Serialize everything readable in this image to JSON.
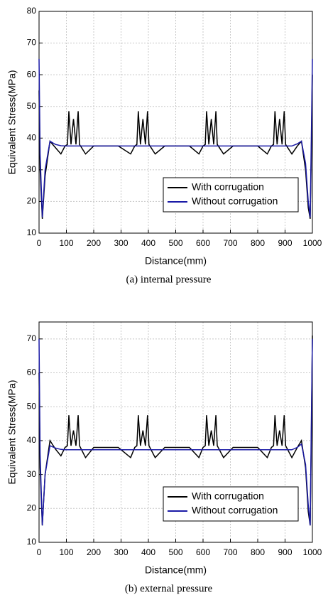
{
  "chart_data": [
    {
      "type": "line",
      "ylabel": "Equivalent Stress(MPa)",
      "xlabel": "Distance(mm)",
      "caption": "(a)  internal  pressure",
      "xlim": [
        0,
        1000
      ],
      "ylim": [
        10,
        80
      ],
      "xticks": [
        0,
        100,
        200,
        300,
        400,
        500,
        600,
        700,
        800,
        900,
        1000
      ],
      "yticks": [
        10,
        20,
        30,
        40,
        50,
        60,
        70,
        80
      ],
      "grid": true,
      "legend": "lower right",
      "x": [
        0,
        4,
        12,
        22,
        40,
        60,
        80,
        95,
        104,
        109,
        117,
        126,
        135,
        143,
        148,
        170,
        200,
        250,
        290,
        335,
        350,
        358,
        363,
        371,
        380,
        389,
        397,
        402,
        425,
        460,
        510,
        550,
        585,
        600,
        608,
        613,
        621,
        630,
        639,
        647,
        652,
        675,
        710,
        760,
        800,
        835,
        850,
        858,
        863,
        871,
        880,
        889,
        897,
        902,
        925,
        945,
        960,
        975,
        985,
        992,
        996,
        1000
      ],
      "series": [
        {
          "name": "With corrugation",
          "color": "#000000",
          "values": [
            55,
            30,
            14.5,
            28,
            39,
            37,
            35,
            37.5,
            38,
            48.5,
            38,
            46,
            38,
            48.5,
            38,
            35,
            37.5,
            37.5,
            37.5,
            35,
            37.5,
            38,
            48.5,
            38,
            46,
            38,
            48.5,
            38,
            35,
            37.5,
            37.5,
            37.5,
            35,
            37.5,
            38,
            48.5,
            38,
            46,
            38,
            48.5,
            38,
            35,
            37.5,
            37.5,
            37.5,
            35,
            37.5,
            38,
            48.5,
            38,
            46,
            38,
            48.5,
            38,
            35,
            37.5,
            39,
            30,
            18,
            14.5,
            35,
            60
          ]
        },
        {
          "name": "Without corrugation",
          "color": "#1a1aa6",
          "values": [
            65,
            35,
            15,
            30,
            39,
            38,
            37.6,
            37.5,
            37.5,
            37.5,
            37.5,
            37.5,
            37.5,
            37.5,
            37.5,
            37.5,
            37.5,
            37.5,
            37.5,
            37.5,
            37.5,
            37.5,
            37.5,
            37.5,
            37.5,
            37.5,
            37.5,
            37.5,
            37.5,
            37.5,
            37.5,
            37.5,
            37.5,
            37.5,
            37.5,
            37.5,
            37.5,
            37.5,
            37.5,
            37.5,
            37.5,
            37.5,
            37.5,
            37.5,
            37.5,
            37.5,
            37.5,
            37.5,
            37.5,
            37.5,
            37.5,
            37.5,
            37.5,
            37.5,
            37.5,
            38.2,
            39,
            32,
            20,
            15,
            40,
            65
          ]
        }
      ]
    },
    {
      "type": "line",
      "ylabel": "Equivalent Stress(MPa)",
      "xlabel": "Distance(mm)",
      "caption": "(b)  external  pressure",
      "xlim": [
        0,
        1000
      ],
      "ylim": [
        10,
        75
      ],
      "xticks": [
        0,
        100,
        200,
        300,
        400,
        500,
        600,
        700,
        800,
        900,
        1000
      ],
      "yticks": [
        10,
        20,
        30,
        40,
        50,
        60,
        70
      ],
      "grid": true,
      "legend": "lower right",
      "x": [
        0,
        4,
        12,
        22,
        40,
        60,
        80,
        95,
        104,
        109,
        117,
        126,
        135,
        143,
        148,
        170,
        200,
        250,
        290,
        335,
        350,
        358,
        363,
        371,
        380,
        389,
        397,
        402,
        425,
        460,
        510,
        550,
        585,
        600,
        608,
        613,
        621,
        630,
        639,
        647,
        652,
        675,
        710,
        760,
        800,
        835,
        850,
        858,
        863,
        871,
        880,
        889,
        897,
        902,
        925,
        945,
        960,
        975,
        985,
        992,
        996,
        1000
      ],
      "series": [
        {
          "name": "With corrugation",
          "color": "#000000",
          "values": [
            60,
            32,
            15,
            30,
            40,
            37.5,
            35.5,
            38,
            38.5,
            47.5,
            38.5,
            43,
            38.5,
            47.5,
            38.5,
            35,
            38,
            38,
            38,
            35,
            38,
            38.5,
            47.5,
            38.5,
            43,
            38.5,
            47.5,
            38.5,
            35,
            38,
            38,
            38,
            35,
            38,
            38.5,
            47.5,
            38.5,
            43,
            38.5,
            47.5,
            38.5,
            35,
            38,
            38,
            38,
            35,
            38,
            38.5,
            47.5,
            38.5,
            43,
            38.5,
            47.5,
            38.5,
            35,
            38,
            40,
            32,
            19,
            15,
            40,
            71
          ]
        },
        {
          "name": "Without corrugation",
          "color": "#1a1aa6",
          "values": [
            70,
            36,
            15,
            30,
            38.5,
            37.8,
            37.4,
            37.3,
            37.3,
            37.3,
            37.3,
            37.3,
            37.3,
            37.3,
            37.3,
            37.3,
            37.3,
            37.3,
            37.3,
            37.3,
            37.3,
            37.3,
            37.3,
            37.3,
            37.3,
            37.3,
            37.3,
            37.3,
            37.3,
            37.3,
            37.3,
            37.3,
            37.3,
            37.3,
            37.3,
            37.3,
            37.3,
            37.3,
            37.3,
            37.3,
            37.3,
            37.3,
            37.3,
            37.3,
            37.3,
            37.3,
            37.3,
            37.3,
            37.3,
            37.3,
            37.3,
            37.3,
            37.3,
            37.3,
            37.3,
            38,
            39,
            33,
            21,
            15,
            45,
            70
          ]
        }
      ]
    }
  ]
}
